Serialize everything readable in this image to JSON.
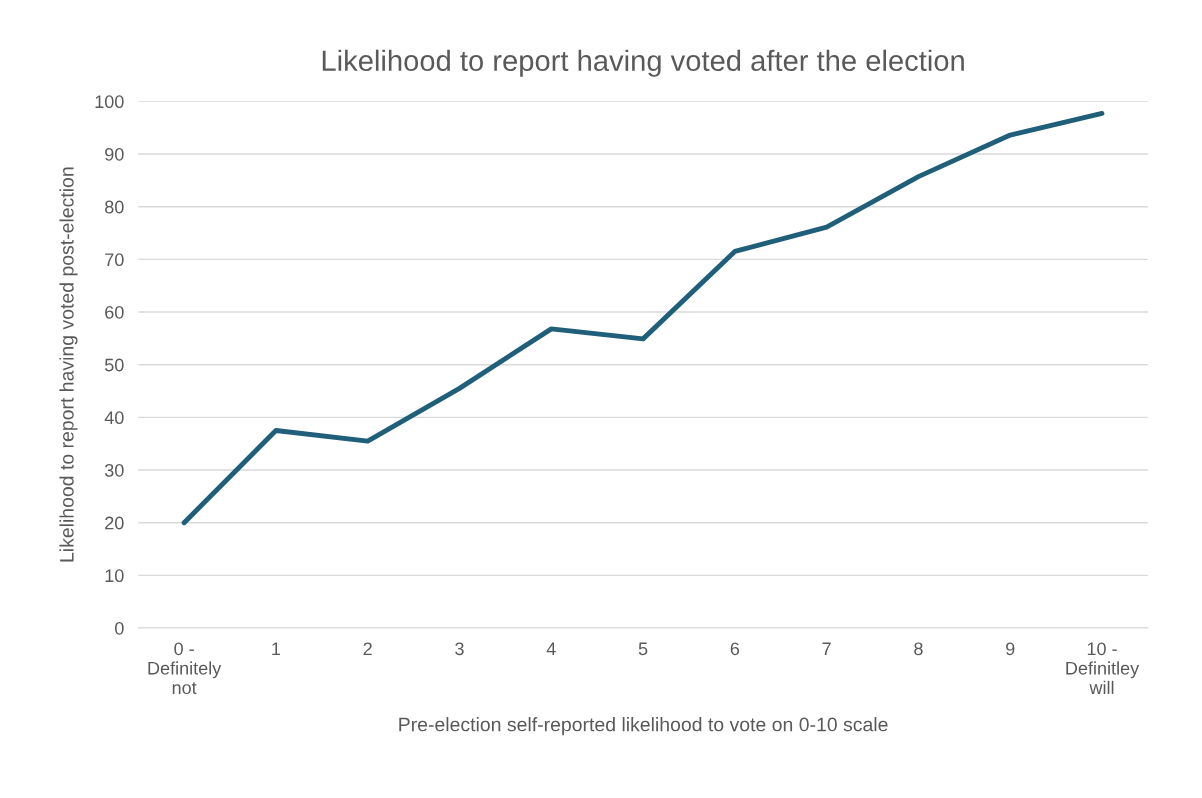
{
  "chart_data": {
    "type": "line",
    "title": "Likelihood to report having voted after the election",
    "xlabel": "Pre-election self-reported likelihood to vote on 0-10 scale",
    "ylabel": "Likelihood to report having voted post-election",
    "categories": [
      "0 -\nDefinitely\nnot",
      "1",
      "2",
      "3",
      "4",
      "5",
      "6",
      "7",
      "8",
      "9",
      "10 -\nDefinitley\nwill"
    ],
    "series": [
      {
        "color": "#1f5f7a",
        "values": [
          20,
          37.5,
          35.5,
          45.5,
          56.8,
          54.9,
          71.5,
          76.1,
          85.7,
          93.6,
          97.7
        ]
      }
    ],
    "ylim": [
      0,
      100
    ],
    "yticks": [
      0,
      10,
      20,
      30,
      40,
      50,
      60,
      70,
      80,
      90,
      100
    ],
    "grid": "y",
    "marker": "none",
    "line_style": "solid",
    "legend": false
  }
}
